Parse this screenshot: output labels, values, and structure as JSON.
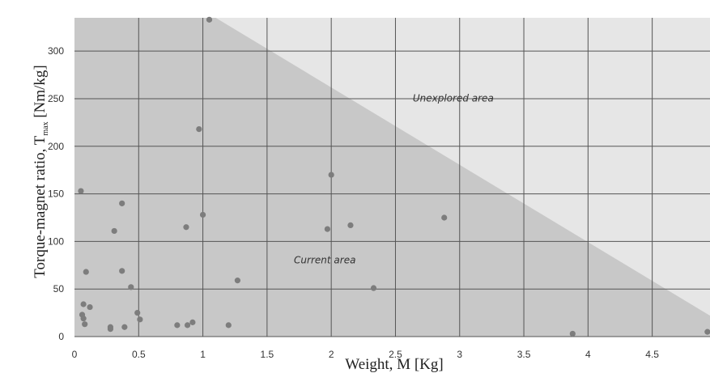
{
  "chart_data": {
    "type": "scatter",
    "title": "",
    "xlabel": "Weight, M [Kg]",
    "ylabel": "Torque-magnet ratio, T",
    "ylabel_subscript": "max",
    "ylabel_unit": " [Nm/kg]",
    "xlim": [
      0,
      4.95
    ],
    "ylim": [
      0,
      335
    ],
    "x_ticks": [
      "0",
      "0.5",
      "1",
      "1.5",
      "2",
      "2.5",
      "3",
      "3.5",
      "4",
      "4.5"
    ],
    "x_tick_values": [
      0,
      0.5,
      1,
      1.5,
      2,
      2.5,
      3,
      3.5,
      4,
      4.5
    ],
    "y_ticks": [
      "0",
      "50",
      "100",
      "150",
      "200",
      "250",
      "300"
    ],
    "y_tick_values": [
      0,
      50,
      100,
      150,
      200,
      250,
      300
    ],
    "grid": true,
    "legend": "none",
    "regions": [
      {
        "name": "Current area",
        "label_at": [
          1.95,
          77
        ],
        "color": "#c8c8c8"
      },
      {
        "name": "Unexplored area",
        "label_at": [
          2.95,
          247
        ],
        "color": "#e6e6e6"
      }
    ],
    "boundary": [
      [
        1.1,
        335
      ],
      [
        4.95,
        22
      ]
    ],
    "point_color": "#7d7d7d",
    "points": [
      [
        0.05,
        153
      ],
      [
        1.05,
        333
      ],
      [
        0.97,
        218
      ],
      [
        2.0,
        170
      ],
      [
        0.37,
        140
      ],
      [
        0.31,
        111
      ],
      [
        0.87,
        115
      ],
      [
        1.0,
        128
      ],
      [
        1.97,
        113
      ],
      [
        2.15,
        117
      ],
      [
        2.88,
        125
      ],
      [
        0.09,
        68
      ],
      [
        0.37,
        69
      ],
      [
        1.27,
        59
      ],
      [
        0.44,
        52
      ],
      [
        2.33,
        51
      ],
      [
        0.07,
        34
      ],
      [
        0.12,
        31
      ],
      [
        0.06,
        23
      ],
      [
        0.07,
        19
      ],
      [
        0.08,
        13
      ],
      [
        0.49,
        25
      ],
      [
        0.51,
        18
      ],
      [
        0.28,
        10
      ],
      [
        0.28,
        8
      ],
      [
        0.39,
        10
      ],
      [
        0.8,
        12
      ],
      [
        0.88,
        12
      ],
      [
        0.92,
        15
      ],
      [
        1.2,
        12
      ],
      [
        3.88,
        3
      ],
      [
        4.93,
        5
      ]
    ]
  }
}
